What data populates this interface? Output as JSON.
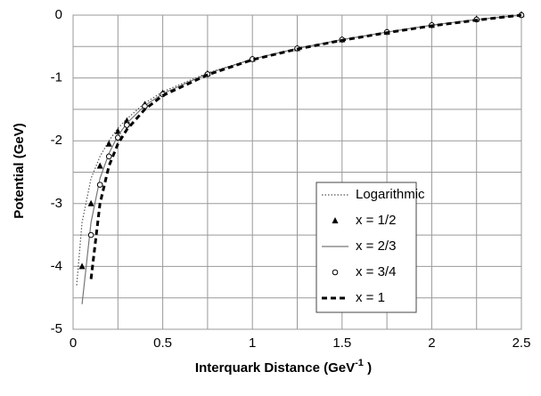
{
  "chart_data": {
    "type": "line",
    "xlabel": "Interquark Distance (GeV",
    "xlabel_sup": "-1",
    "xlabel_end": " )",
    "ylabel": "Potential (GeV)",
    "x": [
      0.02,
      0.05,
      0.1,
      0.15,
      0.2,
      0.25,
      0.3,
      0.4,
      0.5,
      0.75,
      1,
      1.25,
      1.5,
      1.75,
      2,
      2.25,
      2.5
    ],
    "series": [
      {
        "name": "Logarithmic",
        "color": "#555555",
        "style": "dotted",
        "marker": null,
        "values": [
          -4.3,
          -3.3,
          -2.6,
          -2.25,
          -2.0,
          -1.8,
          -1.65,
          -1.4,
          -1.22,
          -0.92,
          -0.7,
          -0.53,
          -0.39,
          -0.27,
          -0.16,
          -0.07,
          0
        ]
      },
      {
        "name": "x = 1/2",
        "color": "#000000",
        "style": "none",
        "marker": "triangle",
        "values": [
          null,
          -4.0,
          -3.0,
          -2.4,
          -2.05,
          -1.85,
          -1.68,
          -1.42,
          -1.24,
          -0.93,
          -0.7,
          -0.53,
          -0.39,
          -0.27,
          -0.16,
          -0.06,
          0.01
        ]
      },
      {
        "name": "x = 2/3",
        "color": "#777777",
        "style": "solid",
        "marker": null,
        "values": [
          null,
          -4.6,
          -3.3,
          -2.6,
          -2.2,
          -1.92,
          -1.72,
          -1.44,
          -1.25,
          -0.93,
          -0.7,
          -0.53,
          -0.39,
          -0.27,
          -0.16,
          -0.07,
          0
        ]
      },
      {
        "name": "x = 3/4",
        "color": "#000000",
        "style": "none",
        "marker": "circle",
        "values": [
          null,
          null,
          -3.5,
          -2.7,
          -2.25,
          -1.95,
          -1.75,
          -1.45,
          -1.26,
          -0.94,
          -0.7,
          -0.53,
          -0.39,
          -0.27,
          -0.16,
          -0.07,
          0
        ]
      },
      {
        "name": "x = 1",
        "color": "#000000",
        "style": "dashed",
        "marker": null,
        "values": [
          null,
          null,
          -4.2,
          -3.0,
          -2.4,
          -2.05,
          -1.82,
          -1.5,
          -1.28,
          -0.95,
          -0.71,
          -0.54,
          -0.4,
          -0.28,
          -0.17,
          -0.08,
          0
        ]
      }
    ],
    "xlim": [
      0,
      2.5
    ],
    "ylim": [
      -5,
      0
    ],
    "xticks": [
      0,
      0.5,
      1,
      1.5,
      2,
      2.5
    ],
    "yticks": [
      -5,
      -4,
      -3,
      -2,
      -1,
      0
    ],
    "xgrid": [
      0.25,
      0.75,
      1.25,
      1.75,
      2.25
    ],
    "ygrid": [
      -4.5,
      -3.5,
      -2.5,
      -1.5,
      -0.5
    ],
    "grid": true,
    "legend": "lower-right"
  }
}
